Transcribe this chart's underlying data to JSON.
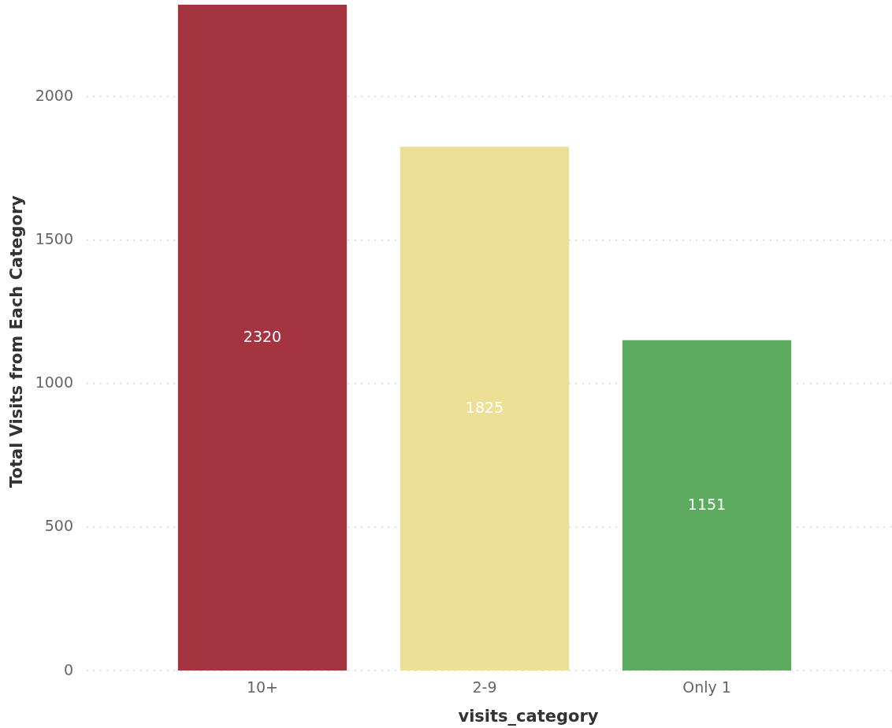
{
  "chart_data": {
    "type": "bar",
    "xlabel": "visits_category",
    "ylabel": "Total Visits from Each Category",
    "categories": [
      "10+",
      "2-9",
      "Only 1"
    ],
    "values": [
      2320,
      1825,
      1151
    ],
    "colors": [
      "#a4343f",
      "#eedf97",
      "#5dab5f"
    ],
    "ylim": [
      0,
      2320
    ],
    "yticks": [
      0,
      500,
      1000,
      1500,
      2000
    ],
    "grid": "y",
    "data_labels": true
  }
}
